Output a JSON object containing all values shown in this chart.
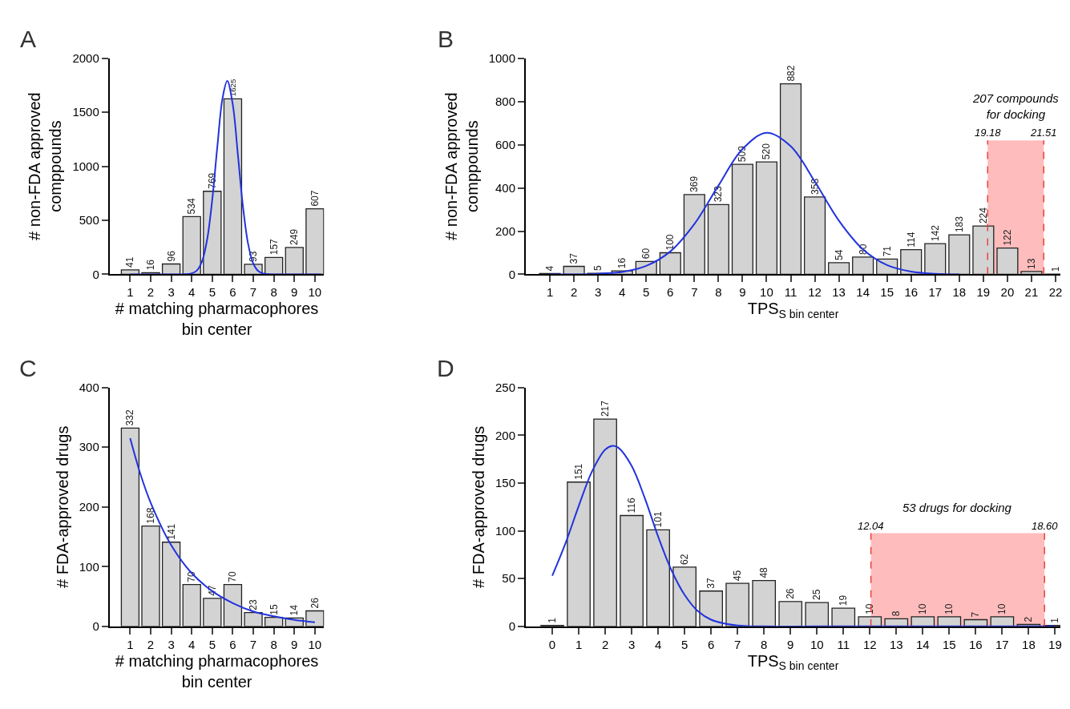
{
  "chart_data": [
    {
      "type": "bar",
      "title": "A",
      "xlabel": "# matching pharmacophores\nbin center",
      "ylabel": "# non-FDA approved\ncomppounds",
      "x": [
        1,
        2,
        3,
        4,
        5,
        6,
        7,
        8,
        9,
        10
      ],
      "xlim": [
        0,
        10.45
      ],
      "xticks": [
        1,
        2,
        3,
        4,
        5,
        6,
        7,
        8,
        9,
        10
      ],
      "ylim": [
        0,
        2000
      ],
      "yticks": [
        0,
        500,
        1000,
        1500,
        2000
      ],
      "grid": false,
      "series": [
        {
          "color": "#d3d3d3",
          "values": [
            41,
            16,
            96,
            534,
            769,
            1625,
            93,
            157,
            249,
            607
          ],
          "value_labels": [
            "41",
            "16",
            "96",
            "534",
            "769",
            "1625",
            "93",
            "157",
            "249",
            "607"
          ]
        },
        {
          "type": "line",
          "color": "#2233dd",
          "x": [
            1,
            2,
            3,
            3.5,
            4,
            4.25,
            4.5,
            4.75,
            5,
            5.25,
            5.5,
            5.73,
            6,
            6.25,
            6.5,
            6.75,
            7,
            7.25,
            7.5,
            8,
            9,
            10.3
          ],
          "values": [
            0,
            0,
            0,
            0,
            9,
            36,
            120,
            322,
            692,
            1187,
            1629,
            1790,
            1571,
            1104,
            621,
            279,
            100,
            29,
            7,
            0,
            0,
            0
          ]
        }
      ]
    },
    {
      "type": "bar",
      "title": "B",
      "xlabel": "TPS$_{S bin center}$",
      "ylabel": "# non-FDA approved\ncomppounds",
      "x": [
        1,
        2,
        3,
        4,
        5,
        6,
        7,
        8,
        9,
        10,
        11,
        12,
        13,
        14,
        15,
        16,
        17,
        18,
        19,
        20,
        21,
        22
      ],
      "xlim": [
        0,
        22.2
      ],
      "xticks": [
        1,
        2,
        3,
        4,
        5,
        6,
        7,
        8,
        9,
        10,
        11,
        12,
        13,
        14,
        15,
        16,
        17,
        18,
        19,
        20,
        21,
        22
      ],
      "ylim": [
        0,
        1000
      ],
      "yticks": [
        0,
        200,
        400,
        600,
        800,
        1000
      ],
      "grid": false,
      "series": [
        {
          "color": "#d3d3d3",
          "values": [
            4,
            37,
            5,
            16,
            60,
            100,
            369,
            323,
            509,
            520,
            882,
            358,
            54,
            80,
            71,
            114,
            142,
            183,
            224,
            122,
            13,
            1
          ],
          "value_labels": [
            "4",
            "37",
            "5",
            "16",
            "60",
            "100",
            "369",
            "323",
            "509",
            "520",
            "882",
            "358",
            "54",
            "80",
            "71",
            "114",
            "142",
            "183",
            "224",
            "122",
            "13",
            "1"
          ]
        },
        {
          "type": "line",
          "color": "#2233dd",
          "x": [
            1,
            2,
            3,
            4,
            5,
            6,
            7,
            8,
            9,
            10,
            11,
            12,
            13,
            14,
            15,
            16,
            17,
            18
          ],
          "values": [
            0,
            0,
            3,
            11,
            39,
            106,
            233,
            411,
            580,
            655,
            593,
            430,
            249,
            116,
            43,
            13,
            3,
            0
          ]
        }
      ],
      "bands": [
        {
          "axis": "x",
          "from": 19.18,
          "to": 21.51,
          "label": "207 compounds\nfor docking",
          "color": "#ffbcbc"
        }
      ],
      "ref_lines": [
        {
          "axis": "x",
          "value": 19.18,
          "label": "19.18",
          "color": "#e8413c",
          "line_style": "dashed"
        },
        {
          "axis": "x",
          "value": 21.51,
          "label": "21.51",
          "color": "#e8413c",
          "line_style": "dashed"
        }
      ]
    },
    {
      "type": "bar",
      "title": "C",
      "xlabel": "# matching pharmacophores\nbin center",
      "ylabel": "# FDA-approved drugs",
      "x": [
        1,
        2,
        3,
        4,
        5,
        6,
        7,
        8,
        9,
        10
      ],
      "xlim": [
        0,
        10.45
      ],
      "xticks": [
        1,
        2,
        3,
        4,
        5,
        6,
        7,
        8,
        9,
        10
      ],
      "ylim": [
        0,
        400
      ],
      "yticks": [
        0,
        100,
        200,
        300,
        400
      ],
      "grid": false,
      "series": [
        {
          "color": "#d3d3d3",
          "values": [
            332,
            168,
            141,
            70,
            47,
            70,
            23,
            15,
            14,
            26
          ],
          "value_labels": [
            "332",
            "168",
            "141",
            "70",
            "47",
            "70",
            "23",
            "15",
            "14",
            "26"
          ]
        },
        {
          "type": "line",
          "color": "#2233dd",
          "x": [
            1,
            1.5,
            2,
            3,
            4,
            5,
            6,
            7,
            8,
            9,
            10
          ],
          "values": [
            315,
            255,
            207,
            136,
            89,
            59,
            39,
            25,
            17,
            11,
            7
          ]
        }
      ]
    },
    {
      "type": "bar",
      "title": "D",
      "xlabel": "TPS$_{S bin center}$",
      "ylabel": "# FDA-approved drugs",
      "x": [
        0,
        1,
        2,
        3,
        4,
        5,
        6,
        7,
        8,
        9,
        10,
        11,
        12,
        13,
        14,
        15,
        16,
        17,
        18,
        19
      ],
      "xlim": [
        -1,
        19.2
      ],
      "xticks": [
        0,
        1,
        2,
        3,
        4,
        5,
        6,
        7,
        8,
        9,
        10,
        11,
        12,
        13,
        14,
        15,
        16,
        17,
        18,
        19
      ],
      "ylim": [
        0,
        250
      ],
      "yticks": [
        0,
        50,
        100,
        150,
        200,
        250
      ],
      "grid": false,
      "series": [
        {
          "color": "#d3d3d3",
          "values": [
            1,
            151,
            217,
            116,
            101,
            62,
            37,
            45,
            48,
            26,
            25,
            19,
            10,
            8,
            10,
            10,
            7,
            10,
            2,
            1
          ],
          "value_labels": [
            "1",
            "151",
            "217",
            "116",
            "101",
            "62",
            "37",
            "45",
            "48",
            "26",
            "25",
            "19",
            "10",
            "8",
            "10",
            "10",
            "7",
            "10",
            "2",
            "1"
          ]
        },
        {
          "type": "line",
          "color": "#2233dd",
          "x": [
            0,
            0.5,
            1,
            1.5,
            2,
            2.3,
            2.5,
            3,
            3.5,
            4,
            4.5,
            5,
            5.5,
            6,
            6.5,
            7,
            8,
            10,
            19
          ],
          "values": [
            53,
            87,
            126,
            162,
            185,
            189,
            187,
            168,
            134,
            94,
            59,
            33,
            16,
            7,
            3,
            1,
            0,
            0,
            0
          ]
        }
      ],
      "bands": [
        {
          "axis": "x",
          "from": 12.04,
          "to": 18.6,
          "label": "53 drugs for docking",
          "color": "#ffbcbc"
        }
      ],
      "ref_lines": [
        {
          "axis": "x",
          "value": 12.04,
          "label": "12.04",
          "color": "#e8413c",
          "line_style": "dashed"
        },
        {
          "axis": "x",
          "value": 18.6,
          "label": "18.60",
          "color": "#e8413c",
          "line_style": "dashed"
        }
      ]
    }
  ]
}
